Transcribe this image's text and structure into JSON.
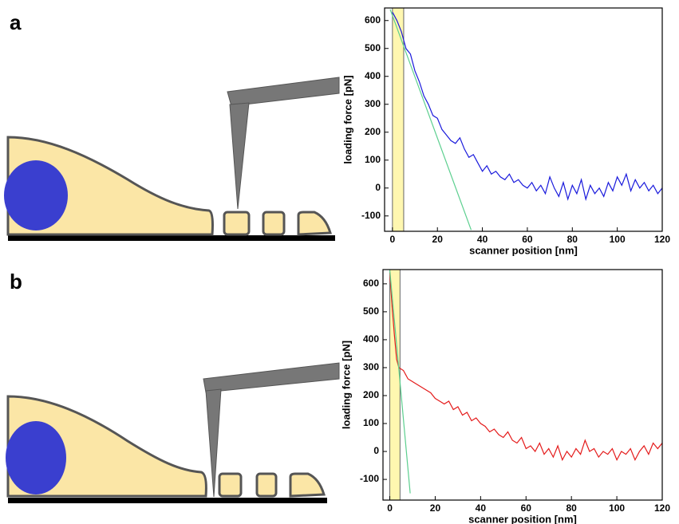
{
  "chart_data": [
    {
      "type": "line",
      "label": "a",
      "xlabel": "scanner position [nm]",
      "ylabel": "loading force [pN]",
      "xlim": [
        -3.5,
        120
      ],
      "ylim": [
        -155,
        645
      ],
      "xticks": [
        0,
        20,
        40,
        60,
        80,
        100,
        120
      ],
      "yticks": [
        -100,
        0,
        100,
        200,
        300,
        400,
        500,
        600
      ],
      "highlight": [
        0,
        5
      ],
      "highlight_color": "#fff7b0",
      "series": [
        {
          "color": "#1a1adc",
          "x": [
            0,
            2,
            4,
            6,
            8,
            10,
            12,
            14,
            16,
            18,
            20,
            22,
            24,
            26,
            28,
            30,
            32,
            34,
            36,
            38,
            40,
            42,
            44,
            46,
            48,
            50,
            52,
            54,
            56,
            58,
            60,
            62,
            64,
            66,
            68,
            70,
            72,
            74,
            76,
            78,
            80,
            82,
            84,
            86,
            88,
            90,
            92,
            94,
            96,
            98,
            100,
            102,
            104,
            106,
            108,
            110,
            112,
            114,
            116,
            118,
            120
          ],
          "values": [
            630,
            600,
            560,
            500,
            480,
            420,
            380,
            330,
            300,
            260,
            250,
            210,
            190,
            170,
            160,
            180,
            140,
            110,
            120,
            90,
            60,
            80,
            50,
            60,
            40,
            30,
            50,
            20,
            30,
            10,
            0,
            20,
            -10,
            10,
            -20,
            40,
            0,
            -30,
            20,
            -40,
            10,
            -20,
            30,
            -40,
            10,
            -20,
            0,
            -30,
            20,
            -10,
            40,
            10,
            50,
            -10,
            30,
            0,
            20,
            -10,
            10,
            -20,
            0
          ]
        },
        {
          "color": "#5ccf8f",
          "x": [
            -1,
            35
          ],
          "values": [
            640,
            -150
          ]
        }
      ]
    },
    {
      "type": "line",
      "label": "b",
      "xlabel": "scanner position [nm]",
      "ylabel": "loading force [pN]",
      "xlim": [
        -3,
        120
      ],
      "ylim": [
        -174,
        651
      ],
      "xticks": [
        0,
        20,
        40,
        60,
        80,
        100,
        120
      ],
      "yticks": [
        -100,
        0,
        100,
        200,
        300,
        400,
        500,
        600
      ],
      "highlight": [
        0,
        4.5
      ],
      "highlight_color": "#fff7b0",
      "series": [
        {
          "color": "#e41a1a",
          "x": [
            0,
            1,
            2,
            3,
            4,
            6,
            8,
            10,
            12,
            14,
            16,
            18,
            20,
            22,
            24,
            26,
            28,
            30,
            32,
            34,
            36,
            38,
            40,
            42,
            44,
            46,
            48,
            50,
            52,
            54,
            56,
            58,
            60,
            62,
            64,
            66,
            68,
            70,
            72,
            74,
            76,
            78,
            80,
            82,
            84,
            86,
            88,
            90,
            92,
            94,
            96,
            98,
            100,
            102,
            104,
            106,
            108,
            110,
            112,
            114,
            116,
            118,
            120
          ],
          "values": [
            640,
            520,
            420,
            330,
            300,
            290,
            260,
            250,
            240,
            230,
            220,
            210,
            190,
            180,
            170,
            180,
            150,
            160,
            130,
            140,
            110,
            120,
            100,
            90,
            70,
            80,
            60,
            50,
            70,
            40,
            30,
            50,
            10,
            20,
            0,
            30,
            -10,
            10,
            -20,
            20,
            -30,
            0,
            -20,
            10,
            -10,
            40,
            0,
            10,
            -20,
            0,
            -10,
            10,
            -30,
            0,
            -10,
            10,
            -30,
            0,
            20,
            -10,
            30,
            10,
            30
          ]
        },
        {
          "color": "#5ccf8f",
          "x": [
            0,
            9
          ],
          "values": [
            650,
            -150
          ]
        }
      ]
    }
  ]
}
